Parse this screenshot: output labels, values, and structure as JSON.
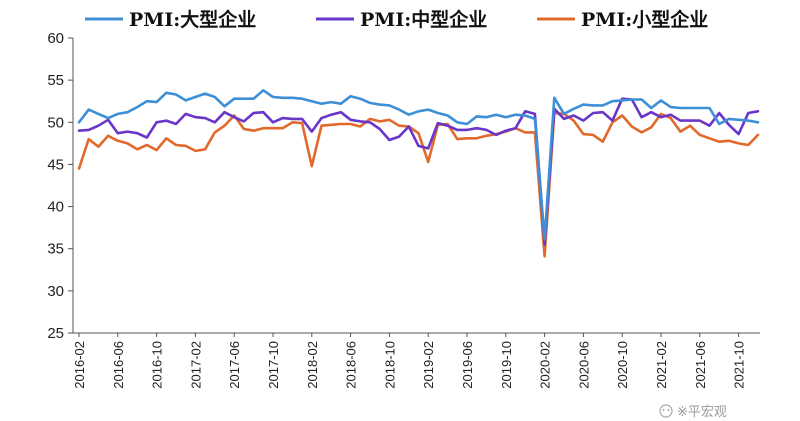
{
  "chart_data": {
    "type": "line",
    "ylim": [
      25,
      60
    ],
    "yticks": [
      25,
      30,
      35,
      40,
      45,
      50,
      55,
      60
    ],
    "x_tick_labels": [
      "2016-02",
      "2016-06",
      "2016-10",
      "2017-02",
      "2017-06",
      "2017-10",
      "2018-02",
      "2018-06",
      "2018-10",
      "2019-02",
      "2019-06",
      "2019-10",
      "2020-02",
      "2020-06",
      "2020-10",
      "2021-02",
      "2021-06",
      "2021-10"
    ],
    "x": [
      "2016-02",
      "2016-03",
      "2016-04",
      "2016-05",
      "2016-06",
      "2016-07",
      "2016-08",
      "2016-09",
      "2016-10",
      "2016-11",
      "2016-12",
      "2017-01",
      "2017-02",
      "2017-03",
      "2017-04",
      "2017-05",
      "2017-06",
      "2017-07",
      "2017-08",
      "2017-09",
      "2017-10",
      "2017-11",
      "2017-12",
      "2018-01",
      "2018-02",
      "2018-03",
      "2018-04",
      "2018-05",
      "2018-06",
      "2018-07",
      "2018-08",
      "2018-09",
      "2018-10",
      "2018-11",
      "2018-12",
      "2019-01",
      "2019-02",
      "2019-03",
      "2019-04",
      "2019-05",
      "2019-06",
      "2019-07",
      "2019-08",
      "2019-09",
      "2019-10",
      "2019-11",
      "2019-12",
      "2020-01",
      "2020-02",
      "2020-03",
      "2020-04",
      "2020-05",
      "2020-06",
      "2020-07",
      "2020-08",
      "2020-09",
      "2020-10",
      "2020-11",
      "2020-12",
      "2021-01",
      "2021-02",
      "2021-03",
      "2021-04",
      "2021-05",
      "2021-06",
      "2021-07",
      "2021-08",
      "2021-09",
      "2021-10",
      "2021-11",
      "2021-12"
    ],
    "series": [
      {
        "name": "PMI:大型企业",
        "color": "#3d8fd6",
        "values": [
          50.0,
          51.5,
          51.0,
          50.5,
          51.0,
          51.2,
          51.8,
          52.5,
          52.4,
          53.5,
          53.3,
          52.6,
          53.0,
          53.4,
          53.0,
          51.9,
          52.8,
          52.8,
          52.8,
          53.8,
          53.0,
          52.9,
          52.9,
          52.8,
          52.5,
          52.2,
          52.4,
          52.2,
          53.1,
          52.8,
          52.3,
          52.1,
          52.0,
          51.5,
          50.9,
          51.3,
          51.5,
          51.1,
          50.8,
          50.0,
          49.8,
          50.7,
          50.6,
          50.9,
          50.6,
          50.9,
          50.8,
          50.4,
          36.1,
          52.9,
          51.0,
          51.6,
          52.1,
          52.0,
          52.0,
          52.5,
          52.6,
          52.7,
          52.7,
          51.7,
          52.6,
          51.8,
          51.7,
          51.7,
          51.7,
          51.7,
          49.8,
          50.4,
          50.3,
          50.2,
          50.0
        ]
      },
      {
        "name": "PMI:中型企业",
        "color": "#6a35c9",
        "values": [
          49.0,
          49.1,
          49.6,
          50.3,
          48.7,
          48.9,
          48.7,
          48.2,
          50.0,
          50.2,
          49.8,
          51.0,
          50.6,
          50.5,
          50.0,
          51.2,
          50.6,
          50.1,
          51.1,
          51.2,
          50.0,
          50.5,
          50.4,
          50.4,
          48.9,
          50.5,
          50.9,
          51.2,
          50.3,
          50.1,
          50.0,
          49.2,
          47.9,
          48.3,
          49.5,
          47.2,
          46.9,
          49.9,
          49.6,
          49.1,
          49.1,
          49.3,
          49.1,
          48.5,
          49.0,
          49.3,
          51.3,
          51.0,
          35.5,
          51.6,
          50.4,
          50.8,
          50.2,
          51.1,
          51.2,
          50.2,
          52.8,
          52.7,
          50.6,
          51.2,
          50.6,
          50.9,
          50.2,
          50.2,
          50.2,
          49.6,
          51.1,
          49.7,
          48.6,
          51.1,
          51.3
        ]
      },
      {
        "name": "PMI:小型企业",
        "color": "#e2692c",
        "values": [
          44.5,
          48.0,
          47.1,
          48.4,
          47.8,
          47.5,
          46.8,
          47.3,
          46.7,
          48.1,
          47.3,
          47.2,
          46.6,
          46.8,
          48.8,
          49.6,
          50.8,
          49.2,
          49.0,
          49.3,
          49.3,
          49.3,
          50.0,
          49.9,
          44.8,
          49.6,
          49.7,
          49.8,
          49.8,
          49.5,
          50.4,
          50.1,
          50.3,
          49.6,
          49.5,
          48.7,
          45.3,
          49.7,
          49.8,
          48.0,
          48.1,
          48.1,
          48.4,
          48.6,
          48.9,
          49.3,
          48.8,
          48.8,
          34.1,
          51.1,
          51.0,
          50.2,
          48.6,
          48.5,
          47.7,
          50.0,
          50.8,
          49.5,
          48.8,
          49.4,
          51.0,
          50.5,
          48.9,
          49.6,
          48.5,
          48.1,
          47.7,
          47.8,
          47.5,
          47.3,
          48.5
        ]
      }
    ],
    "legend_placement": "top",
    "grid": false
  },
  "watermark": {
    "text": "※平宏观"
  }
}
